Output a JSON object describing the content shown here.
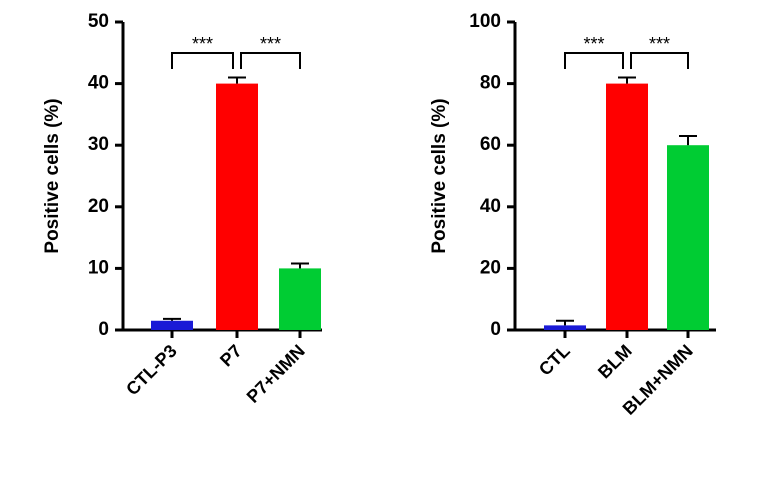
{
  "chart_data": [
    {
      "type": "bar",
      "y_label": "Positive cells (%)",
      "categories": [
        "CTL-P3",
        "P7",
        "P7+NMN"
      ],
      "values": [
        1.5,
        40,
        10
      ],
      "errors": [
        0.3,
        1,
        0.8
      ],
      "colors": [
        "#1a1ad6",
        "#ff0000",
        "#00cc33"
      ],
      "ylim": [
        0,
        50
      ],
      "yticks": [
        0,
        10,
        20,
        30,
        40,
        50
      ],
      "comparisons": [
        {
          "between": [
            "CTL-P3",
            "P7"
          ],
          "label": "***"
        },
        {
          "between": [
            "P7",
            "P7+NMN"
          ],
          "label": "***"
        }
      ]
    },
    {
      "type": "bar",
      "y_label": "Positive cells (%)",
      "categories": [
        "CTL",
        "BLM",
        "BLM+NMN"
      ],
      "values": [
        1.5,
        80,
        60
      ],
      "errors": [
        1.5,
        2,
        3
      ],
      "colors": [
        "#1a1ad6",
        "#ff0000",
        "#00cc33"
      ],
      "ylim": [
        0,
        100
      ],
      "yticks": [
        0,
        20,
        40,
        60,
        80,
        100
      ],
      "comparisons": [
        {
          "between": [
            "CTL",
            "BLM"
          ],
          "label": "***"
        },
        {
          "between": [
            "BLM",
            "BLM+NMN"
          ],
          "label": "***"
        }
      ]
    }
  ]
}
